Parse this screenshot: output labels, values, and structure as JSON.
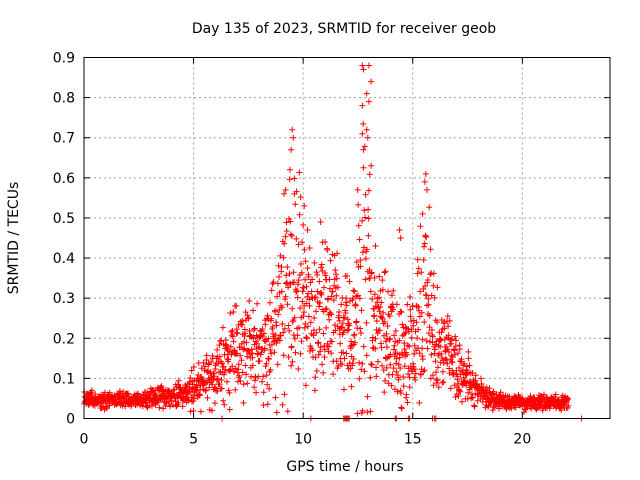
{
  "chart_data": {
    "type": "scatter",
    "title": "Day 135 of 2023, SRMTID for receiver geob",
    "xlabel": "GPS time / hours",
    "ylabel": "SRMTID / TECUs",
    "xlim": [
      0,
      24
    ],
    "ylim": [
      0,
      0.9
    ],
    "xticks": [
      "0",
      "5",
      "10",
      "15",
      "20"
    ],
    "xtick_values": [
      0,
      5,
      10,
      15,
      20
    ],
    "yticks": [
      "0",
      "0.1",
      "0.2",
      "0.3",
      "0.4",
      "0.5",
      "0.6",
      "0.7",
      "0.8",
      "0.9"
    ],
    "ytick_values": [
      0,
      0.1,
      0.2,
      0.3,
      0.4,
      0.5,
      0.6,
      0.7,
      0.8,
      0.9
    ],
    "grid": true,
    "marker": "+",
    "color": "#ff0000",
    "series": [
      {
        "name": "SRMTID",
        "profile_hours": [
          0,
          0.5,
          1,
          1.5,
          2,
          2.5,
          3,
          3.5,
          4,
          4.5,
          5,
          5.5,
          6,
          6.5,
          7,
          7.5,
          8,
          8.5,
          9,
          9.25,
          9.5,
          9.75,
          10,
          10.5,
          11,
          11.5,
          12,
          12.25,
          12.5,
          12.75,
          13,
          13.25,
          13.5,
          14,
          14.5,
          15,
          15.5,
          15.75,
          16,
          16.5,
          17,
          17.5,
          18,
          18.5,
          19,
          19.5,
          20,
          20.5,
          21,
          21.5,
          22
        ],
        "profile_mean": [
          0.05,
          0.045,
          0.045,
          0.045,
          0.045,
          0.05,
          0.05,
          0.055,
          0.055,
          0.06,
          0.08,
          0.09,
          0.11,
          0.14,
          0.17,
          0.18,
          0.15,
          0.17,
          0.25,
          0.33,
          0.36,
          0.38,
          0.3,
          0.22,
          0.27,
          0.27,
          0.22,
          0.2,
          0.27,
          0.33,
          0.3,
          0.24,
          0.22,
          0.2,
          0.18,
          0.2,
          0.28,
          0.33,
          0.18,
          0.17,
          0.12,
          0.1,
          0.07,
          0.05,
          0.045,
          0.04,
          0.04,
          0.04,
          0.04,
          0.04,
          0.04
        ],
        "profile_spread": [
          0.015,
          0.015,
          0.015,
          0.015,
          0.015,
          0.015,
          0.02,
          0.02,
          0.025,
          0.03,
          0.04,
          0.05,
          0.06,
          0.08,
          0.1,
          0.1,
          0.08,
          0.1,
          0.15,
          0.2,
          0.24,
          0.2,
          0.15,
          0.12,
          0.13,
          0.13,
          0.12,
          0.12,
          0.2,
          0.3,
          0.22,
          0.14,
          0.12,
          0.12,
          0.12,
          0.12,
          0.18,
          0.2,
          0.1,
          0.08,
          0.06,
          0.05,
          0.03,
          0.02,
          0.015,
          0.015,
          0.015,
          0.015,
          0.015,
          0.015,
          0.015
        ],
        "peak_points": [
          {
            "x": 9.5,
            "y": 0.72
          },
          {
            "x": 9.55,
            "y": 0.7
          },
          {
            "x": 9.45,
            "y": 0.67
          },
          {
            "x": 9.4,
            "y": 0.62
          },
          {
            "x": 9.2,
            "y": 0.57
          },
          {
            "x": 9.6,
            "y": 0.56
          },
          {
            "x": 12.7,
            "y": 0.88
          },
          {
            "x": 12.75,
            "y": 0.87
          },
          {
            "x": 13.0,
            "y": 0.88
          },
          {
            "x": 13.1,
            "y": 0.84
          },
          {
            "x": 12.7,
            "y": 0.78
          },
          {
            "x": 12.9,
            "y": 0.81
          },
          {
            "x": 13.0,
            "y": 0.79
          },
          {
            "x": 12.7,
            "y": 0.71
          },
          {
            "x": 12.9,
            "y": 0.72
          },
          {
            "x": 12.95,
            "y": 0.7
          },
          {
            "x": 12.75,
            "y": 0.67
          },
          {
            "x": 13.1,
            "y": 0.63
          },
          {
            "x": 15.6,
            "y": 0.61
          },
          {
            "x": 15.55,
            "y": 0.59
          },
          {
            "x": 15.65,
            "y": 0.57
          },
          {
            "x": 15.45,
            "y": 0.51
          },
          {
            "x": 10.05,
            "y": 0.53
          },
          {
            "x": 11.0,
            "y": 0.44
          },
          {
            "x": 11.1,
            "y": 0.42
          },
          {
            "x": 14.4,
            "y": 0.47
          },
          {
            "x": 14.45,
            "y": 0.45
          },
          {
            "x": 13.3,
            "y": 0.43
          },
          {
            "x": 10.2,
            "y": 0.47
          },
          {
            "x": 10.8,
            "y": 0.49
          }
        ],
        "zero_points": [
          6.3,
          10.35,
          11.85,
          11.9,
          11.95,
          12.0,
          12.05,
          12.1,
          14.2,
          14.25,
          14.8,
          14.85,
          15.9,
          16.0,
          16.05,
          22.7
        ]
      }
    ]
  }
}
